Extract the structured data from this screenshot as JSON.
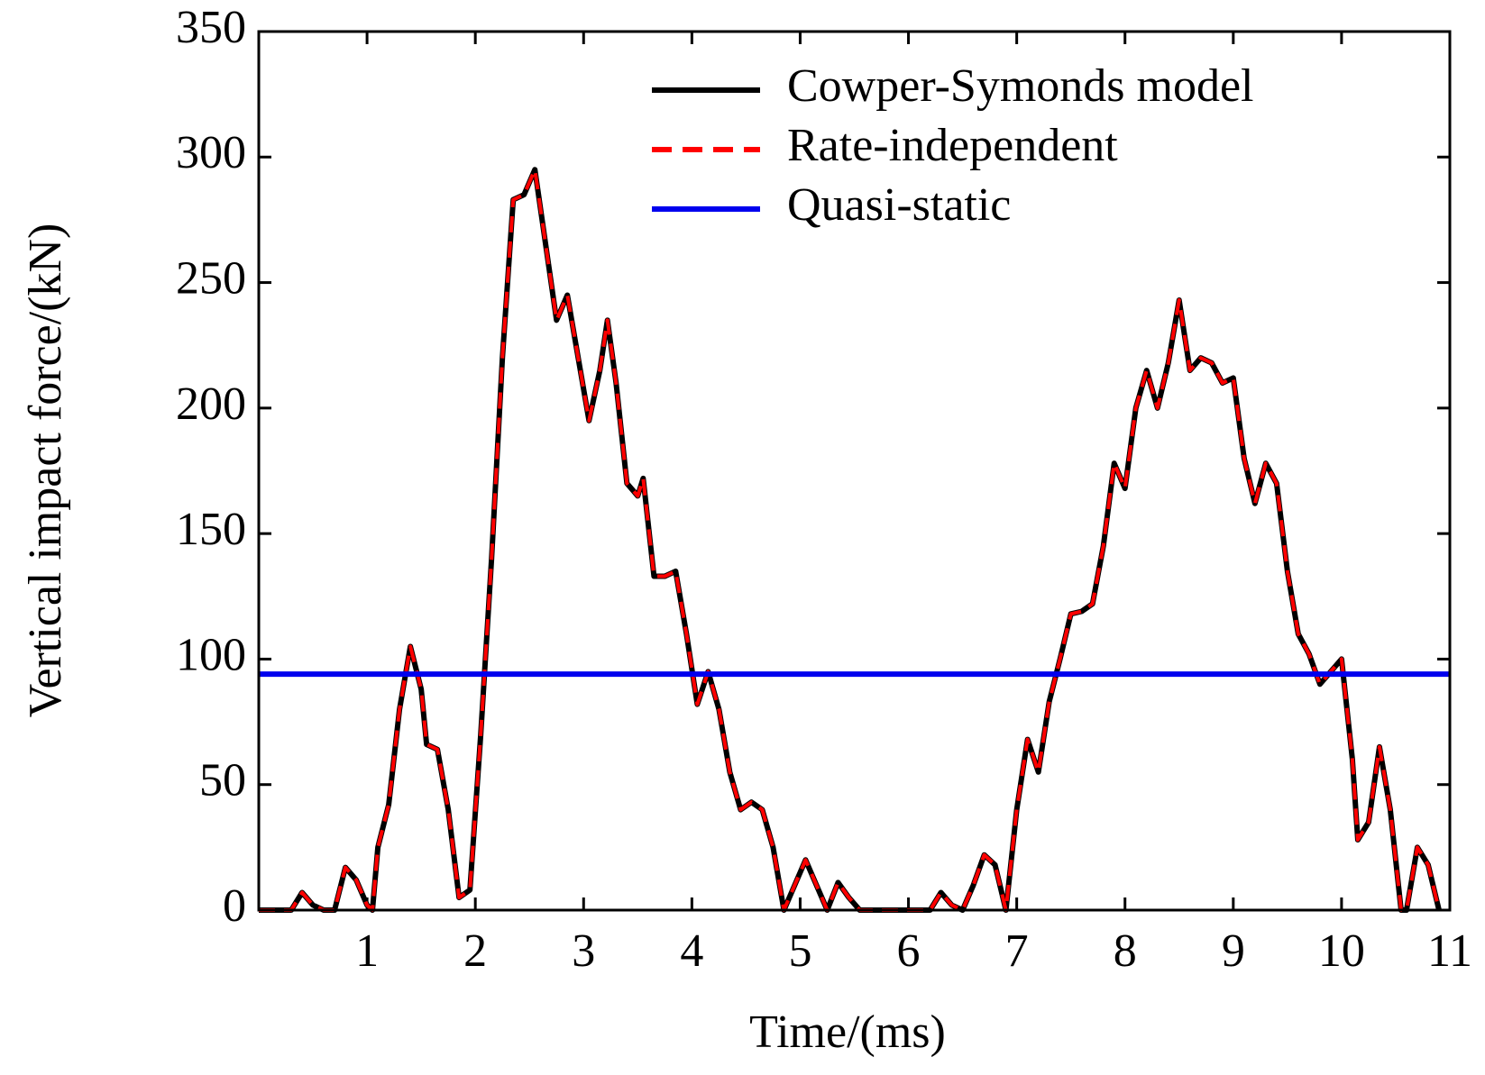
{
  "chart_data": {
    "type": "line",
    "xlabel": "Time/(ms)",
    "ylabel": "Vertical impact force/(kN)",
    "xlim": [
      0,
      11
    ],
    "xticks": [
      1,
      2,
      3,
      4,
      5,
      6,
      7,
      8,
      9,
      10,
      11
    ],
    "ylim": [
      0,
      350
    ],
    "yticks": [
      0,
      50,
      100,
      150,
      200,
      250,
      300,
      350
    ],
    "legend": "upper right",
    "series": [
      {
        "name": "Cowper-Symonds model",
        "color": "#000000",
        "style": "solid",
        "x": [
          0,
          0.3,
          0.4,
          0.5,
          0.6,
          0.7,
          0.8,
          0.9,
          1.0,
          1.05,
          1.1,
          1.2,
          1.3,
          1.4,
          1.5,
          1.55,
          1.65,
          1.75,
          1.85,
          1.95,
          2.05,
          2.15,
          2.25,
          2.35,
          2.45,
          2.55,
          2.65,
          2.75,
          2.85,
          2.95,
          3.05,
          3.15,
          3.22,
          3.3,
          3.4,
          3.5,
          3.55,
          3.65,
          3.75,
          3.85,
          3.95,
          4.05,
          4.15,
          4.25,
          4.35,
          4.45,
          4.55,
          4.65,
          4.75,
          4.85,
          4.95,
          5.05,
          5.15,
          5.25,
          5.35,
          5.45,
          5.55,
          6.0,
          6.2,
          6.3,
          6.4,
          6.5,
          6.6,
          6.7,
          6.8,
          6.9,
          7.0,
          7.1,
          7.2,
          7.3,
          7.4,
          7.5,
          7.6,
          7.7,
          7.8,
          7.9,
          8.0,
          8.1,
          8.2,
          8.3,
          8.4,
          8.5,
          8.6,
          8.7,
          8.8,
          8.9,
          9.0,
          9.1,
          9.2,
          9.3,
          9.4,
          9.5,
          9.6,
          9.7,
          9.8,
          9.9,
          10.0,
          10.1,
          10.15,
          10.25,
          10.35,
          10.45,
          10.55,
          10.6,
          10.7,
          10.8,
          10.9
        ],
        "values": [
          0,
          0,
          7,
          2,
          0,
          0,
          17,
          12,
          2,
          0,
          25,
          42,
          80,
          105,
          88,
          66,
          64,
          40,
          5,
          8,
          70,
          140,
          220,
          283,
          285,
          295,
          265,
          235,
          245,
          220,
          195,
          215,
          235,
          210,
          170,
          165,
          172,
          133,
          133,
          135,
          110,
          82,
          95,
          80,
          55,
          40,
          43,
          40,
          25,
          0,
          10,
          20,
          10,
          0,
          11,
          5,
          0,
          0,
          0,
          7,
          2,
          0,
          10,
          22,
          18,
          0,
          40,
          68,
          55,
          83,
          100,
          118,
          119,
          122,
          145,
          178,
          168,
          200,
          215,
          200,
          218,
          243,
          215,
          220,
          218,
          210,
          212,
          180,
          162,
          178,
          170,
          135,
          110,
          102,
          90,
          95,
          100,
          60,
          28,
          35,
          65,
          40,
          0,
          0,
          25,
          18,
          0
        ]
      },
      {
        "name": "Rate-independent",
        "color": "#ff0000",
        "style": "dashed",
        "x": [
          0,
          0.3,
          0.4,
          0.5,
          0.6,
          0.7,
          0.8,
          0.9,
          1.0,
          1.05,
          1.1,
          1.2,
          1.3,
          1.4,
          1.5,
          1.55,
          1.65,
          1.75,
          1.85,
          1.95,
          2.05,
          2.15,
          2.25,
          2.35,
          2.45,
          2.55,
          2.65,
          2.75,
          2.85,
          2.95,
          3.05,
          3.15,
          3.22,
          3.3,
          3.4,
          3.5,
          3.55,
          3.65,
          3.75,
          3.85,
          3.95,
          4.05,
          4.15,
          4.25,
          4.35,
          4.45,
          4.55,
          4.65,
          4.75,
          4.85,
          4.95,
          5.05,
          5.15,
          5.25,
          5.35,
          5.45,
          5.55,
          6.0,
          6.2,
          6.3,
          6.4,
          6.5,
          6.6,
          6.7,
          6.8,
          6.9,
          7.0,
          7.1,
          7.2,
          7.3,
          7.4,
          7.5,
          7.6,
          7.7,
          7.8,
          7.9,
          8.0,
          8.1,
          8.2,
          8.3,
          8.4,
          8.5,
          8.6,
          8.7,
          8.8,
          8.9,
          9.0,
          9.1,
          9.2,
          9.3,
          9.4,
          9.5,
          9.6,
          9.7,
          9.8,
          9.9,
          10.0,
          10.1,
          10.15,
          10.25,
          10.35,
          10.45,
          10.55,
          10.6,
          10.7,
          10.8,
          10.9
        ],
        "values": [
          0,
          0,
          7,
          2,
          0,
          0,
          17,
          12,
          2,
          0,
          25,
          42,
          80,
          105,
          88,
          66,
          64,
          40,
          5,
          8,
          70,
          140,
          220,
          283,
          285,
          295,
          265,
          235,
          245,
          220,
          195,
          215,
          235,
          210,
          170,
          165,
          172,
          133,
          133,
          135,
          110,
          82,
          95,
          80,
          55,
          40,
          43,
          40,
          25,
          0,
          10,
          20,
          10,
          0,
          11,
          5,
          0,
          0,
          0,
          7,
          2,
          0,
          10,
          22,
          18,
          0,
          40,
          68,
          55,
          83,
          100,
          118,
          119,
          122,
          145,
          178,
          168,
          200,
          215,
          200,
          218,
          243,
          215,
          220,
          218,
          210,
          212,
          180,
          162,
          178,
          170,
          135,
          110,
          102,
          90,
          95,
          100,
          60,
          28,
          35,
          65,
          40,
          0,
          0,
          25,
          18,
          0
        ]
      },
      {
        "name": "Quasi-static",
        "color": "#0000ee",
        "style": "solid",
        "x": [
          0,
          11
        ],
        "values": [
          94,
          94
        ]
      }
    ]
  }
}
